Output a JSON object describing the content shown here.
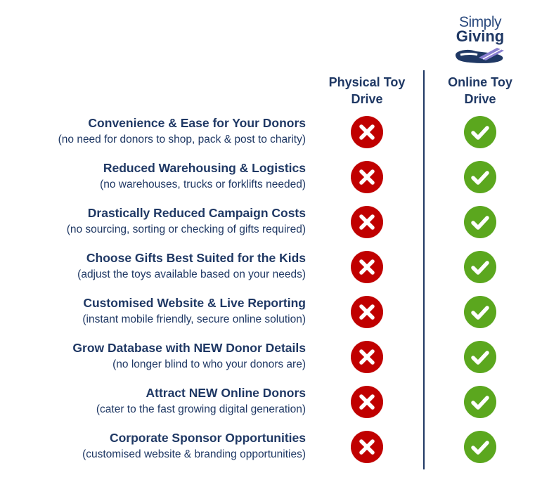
{
  "logo": {
    "line1": "Simply",
    "line2": "Giving",
    "icon": "hand-holding-card-icon"
  },
  "columns": [
    {
      "label": "Physical Toy Drive",
      "line1": "Physical Toy",
      "line2": "Drive"
    },
    {
      "label": "Online Toy Drive",
      "line1": "Online Toy",
      "line2": "Drive"
    }
  ],
  "colors": {
    "text": "#1f3864",
    "cross": "#c00000",
    "check": "#5ba71e"
  },
  "rows": [
    {
      "title": "Convenience & Ease for Your Donors",
      "subtitle": "(no need for donors to shop, pack & post to charity)",
      "physical": "cross-icon",
      "online": "check-icon"
    },
    {
      "title": "Reduced Warehousing & Logistics",
      "subtitle": "(no warehouses, trucks or forklifts needed)",
      "physical": "cross-icon",
      "online": "check-icon"
    },
    {
      "title": "Drastically Reduced Campaign Costs",
      "subtitle": "(no sourcing, sorting or checking of gifts required)",
      "physical": "cross-icon",
      "online": "check-icon"
    },
    {
      "title": "Choose Gifts Best Suited for the Kids",
      "subtitle": "(adjust the toys available based on your needs)",
      "physical": "cross-icon",
      "online": "check-icon"
    },
    {
      "title": "Customised Website & Live Reporting",
      "subtitle": "(instant mobile friendly, secure online solution)",
      "physical": "cross-icon",
      "online": "check-icon"
    },
    {
      "title": "Grow Database with NEW Donor Details",
      "subtitle": "(no longer blind to who your donors are)",
      "physical": "cross-icon",
      "online": "check-icon"
    },
    {
      "title": "Attract NEW Online Donors",
      "subtitle": "(cater to the fast growing digital generation)",
      "physical": "cross-icon",
      "online": "check-icon"
    },
    {
      "title": "Corporate Sponsor Opportunities",
      "subtitle": "(customised website & branding opportunities)",
      "physical": "cross-icon",
      "online": "check-icon"
    }
  ]
}
